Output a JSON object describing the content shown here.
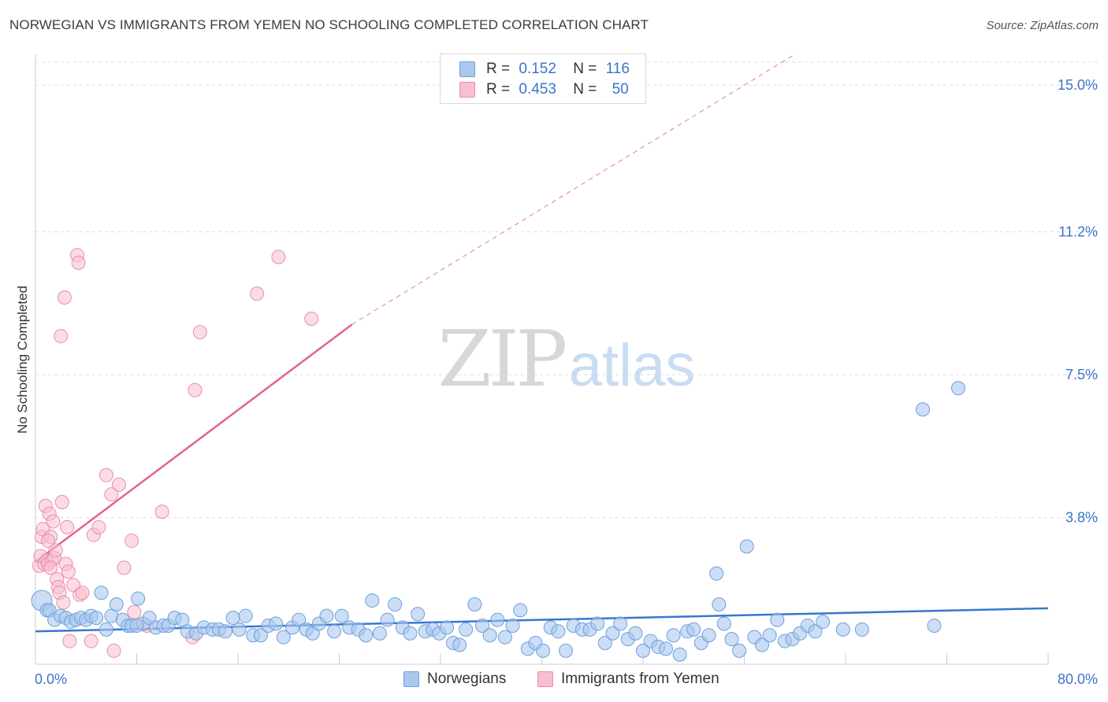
{
  "header": {
    "title": "NORWEGIAN VS IMMIGRANTS FROM YEMEN NO SCHOOLING COMPLETED CORRELATION CHART",
    "source": "Source: ZipAtlas.com"
  },
  "watermark": {
    "zip": "ZIP",
    "atlas": "atlas"
  },
  "legend_top": {
    "rows": [
      {
        "r_label": "R =",
        "r_value": "0.152",
        "n_label": "N =",
        "n_value": "116"
      },
      {
        "r_label": "R =",
        "r_value": "0.453",
        "n_label": "N =",
        "n_value": "50"
      }
    ]
  },
  "legend_bottom": {
    "items": [
      "Norwegians",
      "Immigrants from Yemen"
    ]
  },
  "colors": {
    "blue_fill": "#a9c8ef",
    "blue_stroke": "#6f9fdc",
    "blue_line": "#3777cf",
    "pink_fill": "#f7bfd0",
    "pink_stroke": "#eb8daa",
    "pink_line": "#e0638e",
    "axis_text": "#3d74c9",
    "grid": "#dddddd"
  },
  "chart_data": {
    "type": "scatter",
    "title": "NORWEGIAN VS IMMIGRANTS FROM YEMEN NO SCHOOLING COMPLETED CORRELATION CHART",
    "xlabel": "",
    "ylabel": "No Schooling Completed",
    "xlim": [
      0,
      80
    ],
    "ylim": [
      0,
      15.8
    ],
    "x_tick_labels": [
      "0.0%",
      "80.0%"
    ],
    "y_ticks": [
      3.8,
      7.5,
      11.2,
      15.0
    ],
    "y_tick_labels": [
      "3.8%",
      "7.5%",
      "11.2%",
      "15.0%"
    ],
    "grid": "horizontal dashed",
    "legend_position": "top-center",
    "series": [
      {
        "name": "Norwegians",
        "color": "#a9c8ef",
        "r": 0.152,
        "n": 116,
        "trend": {
          "x": [
            0,
            80
          ],
          "y": [
            0.85,
            1.45
          ]
        },
        "points": [
          [
            0.5,
            1.65
          ],
          [
            0.9,
            1.4
          ],
          [
            1.1,
            1.4
          ],
          [
            1.5,
            1.15
          ],
          [
            2.0,
            1.25
          ],
          [
            2.4,
            1.2
          ],
          [
            2.8,
            1.1
          ],
          [
            3.2,
            1.15
          ],
          [
            3.6,
            1.2
          ],
          [
            4.0,
            1.15
          ],
          [
            4.4,
            1.25
          ],
          [
            4.8,
            1.2
          ],
          [
            5.2,
            1.85
          ],
          [
            5.6,
            0.9
          ],
          [
            6.0,
            1.25
          ],
          [
            6.4,
            1.55
          ],
          [
            6.9,
            1.15
          ],
          [
            7.3,
            1.0
          ],
          [
            7.6,
            1.0
          ],
          [
            8.1,
            1.7
          ],
          [
            8.5,
            1.05
          ],
          [
            9.0,
            1.2
          ],
          [
            9.5,
            0.95
          ],
          [
            10.1,
            1.0
          ],
          [
            10.5,
            1.0
          ],
          [
            11.0,
            1.2
          ],
          [
            11.6,
            1.15
          ],
          [
            12.0,
            0.85
          ],
          [
            12.7,
            0.8
          ],
          [
            13.3,
            0.95
          ],
          [
            14.0,
            0.9
          ],
          [
            14.5,
            0.9
          ],
          [
            15.0,
            0.85
          ],
          [
            15.6,
            1.2
          ],
          [
            16.1,
            0.9
          ],
          [
            16.6,
            1.25
          ],
          [
            17.2,
            0.75
          ],
          [
            17.8,
            0.75
          ],
          [
            18.4,
            1.0
          ],
          [
            19.0,
            1.05
          ],
          [
            19.6,
            0.7
          ],
          [
            20.3,
            0.95
          ],
          [
            20.8,
            1.15
          ],
          [
            21.4,
            0.9
          ],
          [
            21.9,
            0.8
          ],
          [
            22.4,
            1.05
          ],
          [
            23.0,
            1.25
          ],
          [
            23.6,
            0.85
          ],
          [
            24.2,
            1.25
          ],
          [
            24.8,
            0.95
          ],
          [
            25.5,
            0.9
          ],
          [
            26.1,
            0.75
          ],
          [
            26.6,
            1.65
          ],
          [
            27.2,
            0.8
          ],
          [
            27.8,
            1.15
          ],
          [
            28.4,
            1.55
          ],
          [
            29.0,
            0.95
          ],
          [
            29.6,
            0.8
          ],
          [
            30.2,
            1.3
          ],
          [
            30.8,
            0.85
          ],
          [
            31.4,
            0.9
          ],
          [
            31.9,
            0.8
          ],
          [
            32.5,
            0.95
          ],
          [
            33.0,
            0.55
          ],
          [
            33.5,
            0.5
          ],
          [
            34.0,
            0.9
          ],
          [
            34.7,
            1.55
          ],
          [
            35.3,
            1.0
          ],
          [
            35.9,
            0.75
          ],
          [
            36.5,
            1.15
          ],
          [
            37.1,
            0.7
          ],
          [
            37.7,
            1.0
          ],
          [
            38.3,
            1.4
          ],
          [
            38.9,
            0.4
          ],
          [
            39.5,
            0.55
          ],
          [
            40.1,
            0.35
          ],
          [
            40.7,
            0.95
          ],
          [
            41.3,
            0.85
          ],
          [
            41.9,
            0.35
          ],
          [
            42.5,
            1.0
          ],
          [
            43.2,
            0.9
          ],
          [
            43.8,
            0.9
          ],
          [
            44.4,
            1.05
          ],
          [
            45.0,
            0.55
          ],
          [
            45.6,
            0.8
          ],
          [
            46.2,
            1.05
          ],
          [
            46.8,
            0.65
          ],
          [
            47.4,
            0.8
          ],
          [
            48.0,
            0.35
          ],
          [
            48.6,
            0.6
          ],
          [
            49.2,
            0.45
          ],
          [
            49.8,
            0.4
          ],
          [
            50.4,
            0.75
          ],
          [
            50.9,
            0.25
          ],
          [
            51.5,
            0.85
          ],
          [
            52.0,
            0.9
          ],
          [
            52.6,
            0.55
          ],
          [
            53.2,
            0.75
          ],
          [
            53.8,
            2.35
          ],
          [
            54.4,
            1.05
          ],
          [
            55.0,
            0.65
          ],
          [
            55.6,
            0.35
          ],
          [
            56.2,
            3.05
          ],
          [
            56.8,
            0.7
          ],
          [
            57.4,
            0.5
          ],
          [
            58.0,
            0.75
          ],
          [
            58.6,
            1.15
          ],
          [
            59.2,
            0.6
          ],
          [
            59.8,
            0.65
          ],
          [
            60.4,
            0.8
          ],
          [
            61.0,
            1.0
          ],
          [
            61.6,
            0.85
          ],
          [
            62.2,
            1.1
          ],
          [
            63.8,
            0.9
          ],
          [
            65.3,
            0.9
          ],
          [
            70.1,
            6.6
          ],
          [
            72.9,
            7.15
          ],
          [
            71.0,
            1.0
          ],
          [
            54.0,
            1.55
          ],
          [
            8.0,
            1.0
          ]
        ]
      },
      {
        "name": "Immigrants from Yemen",
        "color": "#f7bfd0",
        "r": 0.453,
        "n": 50,
        "trend": {
          "x": [
            0,
            25
          ],
          "y": [
            2.65,
            8.8
          ],
          "dashed_extension_to": [
            60,
            15.8
          ]
        },
        "points": [
          [
            0.3,
            2.55
          ],
          [
            0.4,
            2.8
          ],
          [
            0.5,
            3.3
          ],
          [
            0.6,
            3.5
          ],
          [
            0.7,
            2.6
          ],
          [
            0.8,
            4.1
          ],
          [
            0.9,
            2.7
          ],
          [
            1.0,
            2.6
          ],
          [
            1.1,
            3.9
          ],
          [
            1.2,
            3.3
          ],
          [
            1.3,
            2.7
          ],
          [
            1.4,
            3.7
          ],
          [
            1.5,
            2.75
          ],
          [
            1.6,
            2.95
          ],
          [
            1.7,
            2.2
          ],
          [
            1.8,
            2.0
          ],
          [
            1.9,
            1.85
          ],
          [
            2.0,
            8.5
          ],
          [
            2.1,
            4.2
          ],
          [
            2.2,
            1.6
          ],
          [
            2.3,
            9.5
          ],
          [
            2.4,
            2.6
          ],
          [
            2.5,
            3.55
          ],
          [
            2.6,
            2.4
          ],
          [
            2.7,
            0.6
          ],
          [
            3.0,
            2.05
          ],
          [
            3.3,
            10.6
          ],
          [
            3.4,
            10.4
          ],
          [
            3.5,
            1.8
          ],
          [
            3.7,
            1.85
          ],
          [
            4.4,
            0.6
          ],
          [
            4.6,
            3.35
          ],
          [
            5.0,
            3.55
          ],
          [
            5.6,
            4.9
          ],
          [
            6.0,
            4.4
          ],
          [
            6.2,
            0.35
          ],
          [
            6.6,
            4.65
          ],
          [
            7.0,
            2.5
          ],
          [
            7.6,
            3.2
          ],
          [
            7.8,
            1.35
          ],
          [
            8.8,
            1.0
          ],
          [
            10.0,
            3.95
          ],
          [
            12.4,
            0.7
          ],
          [
            12.6,
            7.1
          ],
          [
            13.0,
            8.6
          ],
          [
            17.5,
            9.6
          ],
          [
            19.2,
            10.55
          ],
          [
            21.8,
            8.95
          ],
          [
            1.0,
            3.2
          ],
          [
            1.2,
            2.5
          ]
        ]
      }
    ]
  }
}
